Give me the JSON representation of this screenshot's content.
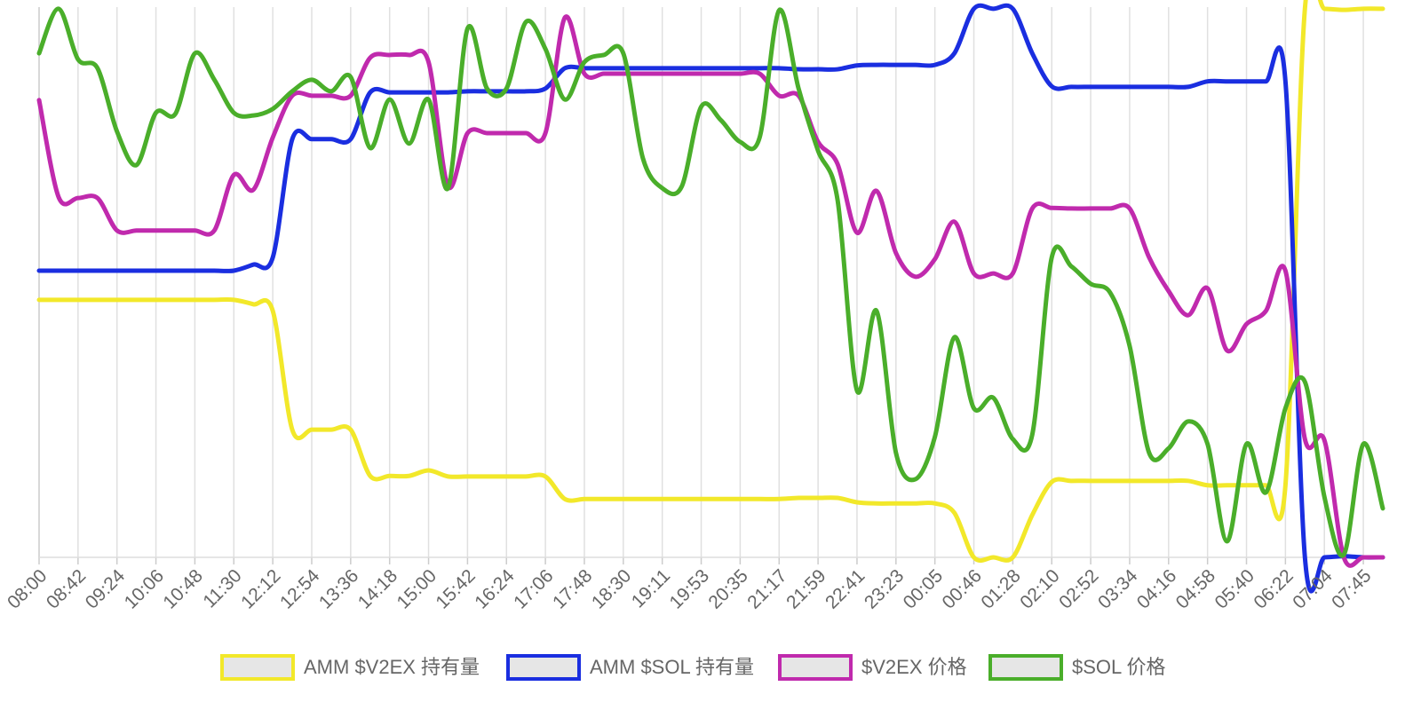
{
  "chart_data": {
    "type": "line",
    "categories": [
      "08:00",
      null,
      "08:42",
      null,
      "09:24",
      null,
      "10:06",
      null,
      "10:48",
      null,
      "11:30",
      null,
      "12:12",
      null,
      "12:54",
      null,
      "13:36",
      null,
      "14:18",
      null,
      "15:00",
      null,
      "15:42",
      null,
      "16:24",
      null,
      "17:06",
      null,
      "17:48",
      null,
      "18:30",
      null,
      "19:11",
      null,
      "19:53",
      null,
      "20:35",
      null,
      "21:17",
      null,
      "21:59",
      null,
      "22:41",
      null,
      "23:23",
      null,
      "00:05",
      null,
      "00:46",
      null,
      "01:28",
      null,
      "02:10",
      null,
      "02:52",
      null,
      "03:34",
      null,
      "04:16",
      null,
      "04:58",
      null,
      "05:40",
      null,
      "06:22",
      null,
      "07:04",
      null,
      "07:45",
      null
    ],
    "ylim": [
      0,
      100
    ],
    "grid": true,
    "legend": "bottom",
    "series": [
      {
        "name": "AMM $V2EX 持有量",
        "color": "#f2e82a",
        "values": [
          46.8,
          46.8,
          46.8,
          46.8,
          46.8,
          46.8,
          46.8,
          46.8,
          46.8,
          46.8,
          46.8,
          46,
          44.8,
          23.2,
          23.2,
          23.2,
          23.2,
          14.8,
          14.8,
          14.8,
          15.8,
          14.7,
          14.7,
          14.7,
          14.7,
          14.7,
          14.7,
          10.6,
          10.6,
          10.6,
          10.6,
          10.6,
          10.6,
          10.6,
          10.6,
          10.6,
          10.6,
          10.6,
          10.6,
          10.8,
          10.8,
          10.8,
          10,
          9.8,
          9.8,
          9.8,
          9.8,
          8.1,
          0,
          0,
          0,
          7.7,
          13.7,
          13.9,
          13.9,
          13.9,
          13.9,
          13.9,
          13.9,
          13.9,
          13.1,
          13.1,
          13.1,
          13.1,
          13.1,
          99.7,
          99.7,
          99.5,
          99.7,
          99.7
        ]
      },
      {
        "name": "AMM $SOL 持有量",
        "color": "#1a2ee0",
        "values": [
          52.1,
          52.1,
          52.1,
          52.1,
          52.1,
          52.1,
          52.1,
          52.1,
          52.1,
          52.1,
          52.1,
          53.2,
          54.5,
          76,
          76,
          76,
          76,
          84.5,
          84.5,
          84.5,
          84.5,
          84.5,
          84.7,
          84.7,
          84.7,
          84.7,
          85.2,
          88.9,
          88.9,
          88.9,
          88.9,
          88.9,
          88.9,
          88.9,
          88.9,
          88.9,
          88.9,
          88.9,
          88.9,
          88.7,
          88.7,
          88.7,
          89.4,
          89.5,
          89.5,
          89.5,
          89.5,
          91.6,
          99.7,
          99.7,
          99.7,
          91.6,
          85.6,
          85.5,
          85.5,
          85.5,
          85.5,
          85.5,
          85.5,
          85.5,
          86.5,
          86.5,
          86.5,
          86.5,
          86.5,
          0,
          0,
          0.2,
          0,
          0
        ]
      },
      {
        "name": "$V2EX 价格",
        "color": "#c02aad",
        "values": [
          83.1,
          65.5,
          65.3,
          65.3,
          59.4,
          59.4,
          59.4,
          59.4,
          59.4,
          59.4,
          69.5,
          66.8,
          76.3,
          83.9,
          83.9,
          83.9,
          83.9,
          90.8,
          91.3,
          91.3,
          90,
          67.4,
          77.1,
          77.1,
          77.1,
          77.1,
          77.1,
          98.1,
          87.9,
          87.9,
          87.9,
          87.9,
          87.9,
          87.9,
          87.9,
          87.9,
          87.9,
          87.9,
          83.9,
          83.9,
          75.5,
          71.5,
          59,
          66.6,
          55.3,
          51,
          54.2,
          61,
          51.6,
          51.6,
          51.6,
          63.4,
          63.5,
          63.4,
          63.4,
          63.4,
          63.4,
          54.5,
          48.4,
          44,
          48.9,
          37.6,
          42.4,
          44.8,
          52.1,
          21.5,
          21.3,
          0,
          0,
          0
        ]
      },
      {
        "name": "$SOL 价格",
        "color": "#4aae2a",
        "values": [
          91.6,
          99.7,
          90.5,
          88.9,
          77.4,
          71.3,
          80.8,
          80.6,
          91.6,
          86.8,
          80.8,
          80.3,
          81.5,
          84.7,
          86.8,
          84.7,
          87.3,
          74.4,
          83.2,
          75.2,
          83.2,
          67.1,
          96.1,
          85.2,
          85.2,
          97.3,
          92.4,
          83.2,
          90,
          91.3,
          91.6,
          72.6,
          67.1,
          67.4,
          81.9,
          79.5,
          75.5,
          76.3,
          99.4,
          85.2,
          73.9,
          65,
          30.3,
          44.8,
          19,
          14.2,
          21.9,
          40,
          27.1,
          29,
          21.5,
          22.3,
          54.5,
          52.9,
          49.7,
          48.1,
          38.4,
          19,
          19.8,
          24.7,
          20.6,
          2.9,
          20.6,
          11.8,
          27.1,
          31.9,
          11,
          0.5,
          20.6,
          8.9
        ]
      }
    ]
  }
}
